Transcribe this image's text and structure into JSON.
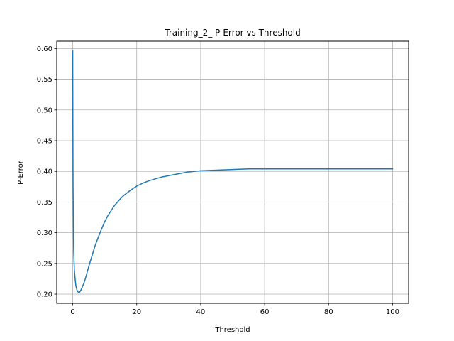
{
  "chart_data": {
    "type": "line",
    "title": "Training_2_ P-Error vs Threshold",
    "xlabel": "Threshold",
    "ylabel": "P-Error",
    "xlim": [
      -5,
      105
    ],
    "ylim": [
      0.185,
      0.612
    ],
    "xticks": [
      0,
      20,
      40,
      60,
      80,
      100
    ],
    "xtick_labels": [
      "0",
      "20",
      "40",
      "60",
      "80",
      "100"
    ],
    "yticks": [
      0.2,
      0.25,
      0.3,
      0.35,
      0.4,
      0.45,
      0.5,
      0.55,
      0.6
    ],
    "ytick_labels": [
      "0.20",
      "0.25",
      "0.30",
      "0.35",
      "0.40",
      "0.45",
      "0.50",
      "0.55",
      "0.60"
    ],
    "grid": true,
    "line_color": "#1f77b4",
    "series": [
      {
        "x": [
          0.0,
          0.05,
          0.1,
          0.2,
          0.3,
          0.5,
          0.8,
          1.0,
          1.3,
          1.6,
          2.0,
          2.5,
          3.0,
          3.5,
          4.0,
          5.0,
          6.0,
          7.0,
          8.0,
          9.0,
          10.0,
          11.0,
          12.0,
          13.0,
          14.0,
          15.0,
          16.0,
          18.0,
          20.0,
          22.0,
          24.0,
          26.0,
          28.0,
          30.0,
          32.0,
          34.0,
          36.0,
          38.0,
          40.0,
          45.0,
          50.0,
          55.0,
          60.0,
          70.0,
          80.0,
          90.0,
          100.0
        ],
        "y": [
          0.596,
          0.47,
          0.38,
          0.31,
          0.27,
          0.24,
          0.222,
          0.213,
          0.207,
          0.204,
          0.202,
          0.206,
          0.212,
          0.218,
          0.226,
          0.245,
          0.262,
          0.279,
          0.293,
          0.306,
          0.318,
          0.328,
          0.336,
          0.344,
          0.35,
          0.356,
          0.361,
          0.369,
          0.376,
          0.381,
          0.385,
          0.388,
          0.391,
          0.393,
          0.395,
          0.397,
          0.399,
          0.4,
          0.401,
          0.402,
          0.403,
          0.404,
          0.404,
          0.404,
          0.404,
          0.404,
          0.404
        ]
      }
    ]
  }
}
